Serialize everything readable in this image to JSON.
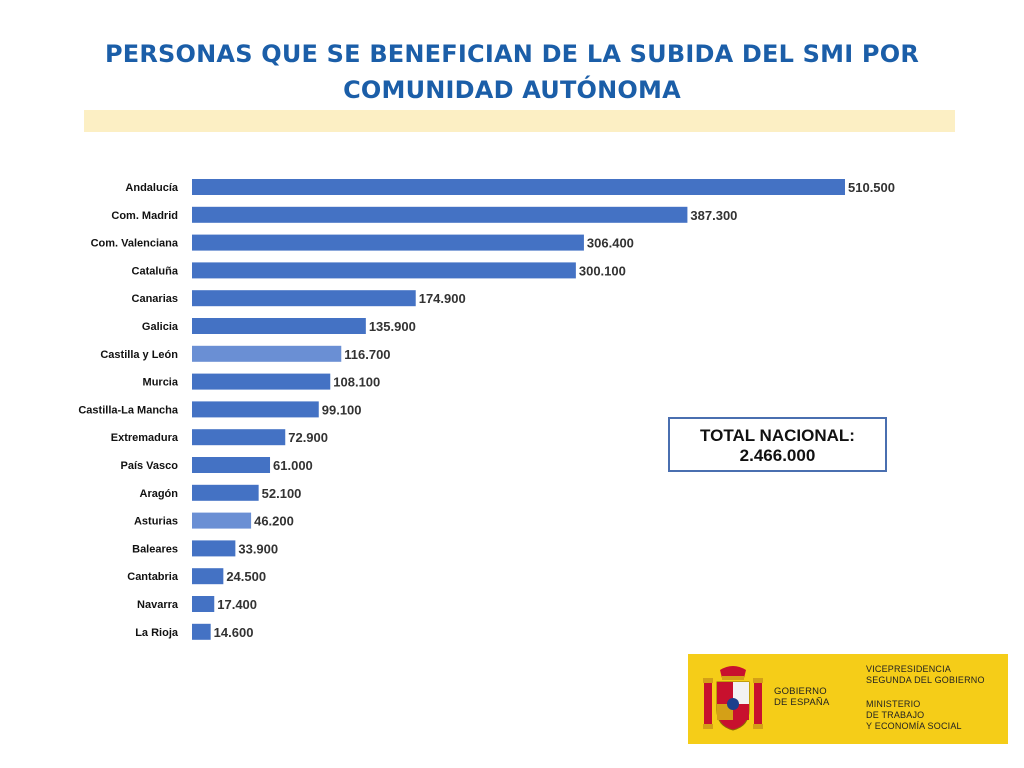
{
  "title_lines": [
    "PERSONAS QUE SE BENEFICIAN DE LA SUBIDA DEL SMI POR",
    "COMUNIDAD AUTÓNOMA"
  ],
  "total": {
    "label": "TOTAL NACIONAL:",
    "value": "2.466.000"
  },
  "logo": {
    "gov_lines": [
      "GOBIERNO",
      "DE ESPAÑA"
    ],
    "vice_lines": [
      "VICEPRESIDENCIA",
      "SEGUNDA DEL GOBIERNO"
    ],
    "ministry_lines": [
      "MINISTERIO",
      "DE TRABAJO",
      "Y ECONOMÍA SOCIAL"
    ]
  },
  "colors": {
    "bar": "#4472c4",
    "bar_light": "#6a8fd4",
    "title": "#1b5ea8",
    "highlight": "#fcefc4",
    "logo_bg": "#f5cd18"
  },
  "chart_data": {
    "type": "bar",
    "orientation": "horizontal",
    "title": "PERSONAS QUE SE BENEFICIAN DE LA SUBIDA DEL SMI POR COMUNIDAD AUTÓNOMA",
    "xlabel": "",
    "ylabel": "",
    "grid": false,
    "categories": [
      "Andalucía",
      "Com. Madrid",
      "Com. Valenciana",
      "Cataluña",
      "Canarias",
      "Galicia",
      "Castilla y León",
      "Murcia",
      "Castilla-La Mancha",
      "Extremadura",
      "País Vasco",
      "Aragón",
      "Asturias",
      "Baleares",
      "Cantabria",
      "Navarra",
      "La Rioja"
    ],
    "values": [
      510500,
      387300,
      306400,
      300100,
      174900,
      135900,
      116700,
      108100,
      99100,
      72900,
      61000,
      52100,
      46200,
      33900,
      24500,
      17400,
      14600
    ],
    "value_labels": [
      "510.500",
      "387.300",
      "306.400",
      "300.100",
      "174.900",
      "135.900",
      "116.700",
      "108.100",
      "99.100",
      "72.900",
      "61.000",
      "52.100",
      "46.200",
      "33.900",
      "24.500",
      "17.400",
      "14.600"
    ],
    "highlighted_categories": [
      "Castilla y León",
      "Asturias"
    ]
  }
}
